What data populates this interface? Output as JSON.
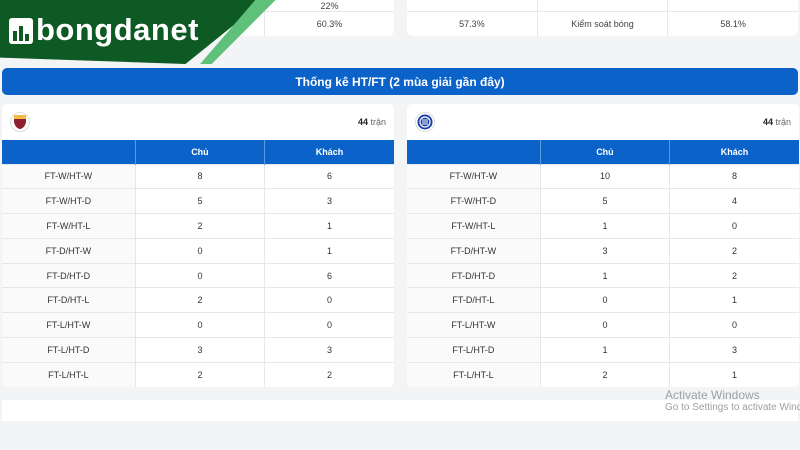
{
  "top_stats": {
    "left": {
      "row_partial": [
        "",
        "22%"
      ],
      "row": [
        "",
        "60.3%"
      ]
    },
    "right": {
      "row": [
        "57.3%",
        "Kiểm soát bóng",
        "58.1%"
      ]
    }
  },
  "logo": {
    "text": "bongdanet"
  },
  "section_title": "Thống kê HT/FT (2 mùa giải gần đây)",
  "columns": [
    "",
    "Chủ",
    "Khách"
  ],
  "teams": [
    {
      "crest": "as-roma-crest",
      "matches_count": "44",
      "matches_unit": "trận",
      "rows": [
        [
          "FT-W/HT-W",
          "8",
          "6"
        ],
        [
          "FT-W/HT-D",
          "5",
          "3"
        ],
        [
          "FT-W/HT-L",
          "2",
          "1"
        ],
        [
          "FT-D/HT-W",
          "0",
          "1"
        ],
        [
          "FT-D/HT-D",
          "0",
          "6"
        ],
        [
          "FT-D/HT-L",
          "2",
          "0"
        ],
        [
          "FT-L/HT-W",
          "0",
          "0"
        ],
        [
          "FT-L/HT-D",
          "3",
          "3"
        ],
        [
          "FT-L/HT-L",
          "2",
          "2"
        ]
      ]
    },
    {
      "crest": "inter-crest",
      "matches_count": "44",
      "matches_unit": "trận",
      "rows": [
        [
          "FT-W/HT-W",
          "10",
          "8"
        ],
        [
          "FT-W/HT-D",
          "5",
          "4"
        ],
        [
          "FT-W/HT-L",
          "1",
          "0"
        ],
        [
          "FT-D/HT-W",
          "3",
          "2"
        ],
        [
          "FT-D/HT-D",
          "1",
          "2"
        ],
        [
          "FT-D/HT-L",
          "0",
          "1"
        ],
        [
          "FT-L/HT-W",
          "0",
          "0"
        ],
        [
          "FT-L/HT-D",
          "1",
          "3"
        ],
        [
          "FT-L/HT-L",
          "2",
          "1"
        ]
      ]
    }
  ],
  "watermark": {
    "title": "Activate Windows",
    "subtitle": "Go to Settings to activate Windows."
  },
  "colors": {
    "primary": "#0b63c9",
    "logo_green": "#0e5a24"
  }
}
